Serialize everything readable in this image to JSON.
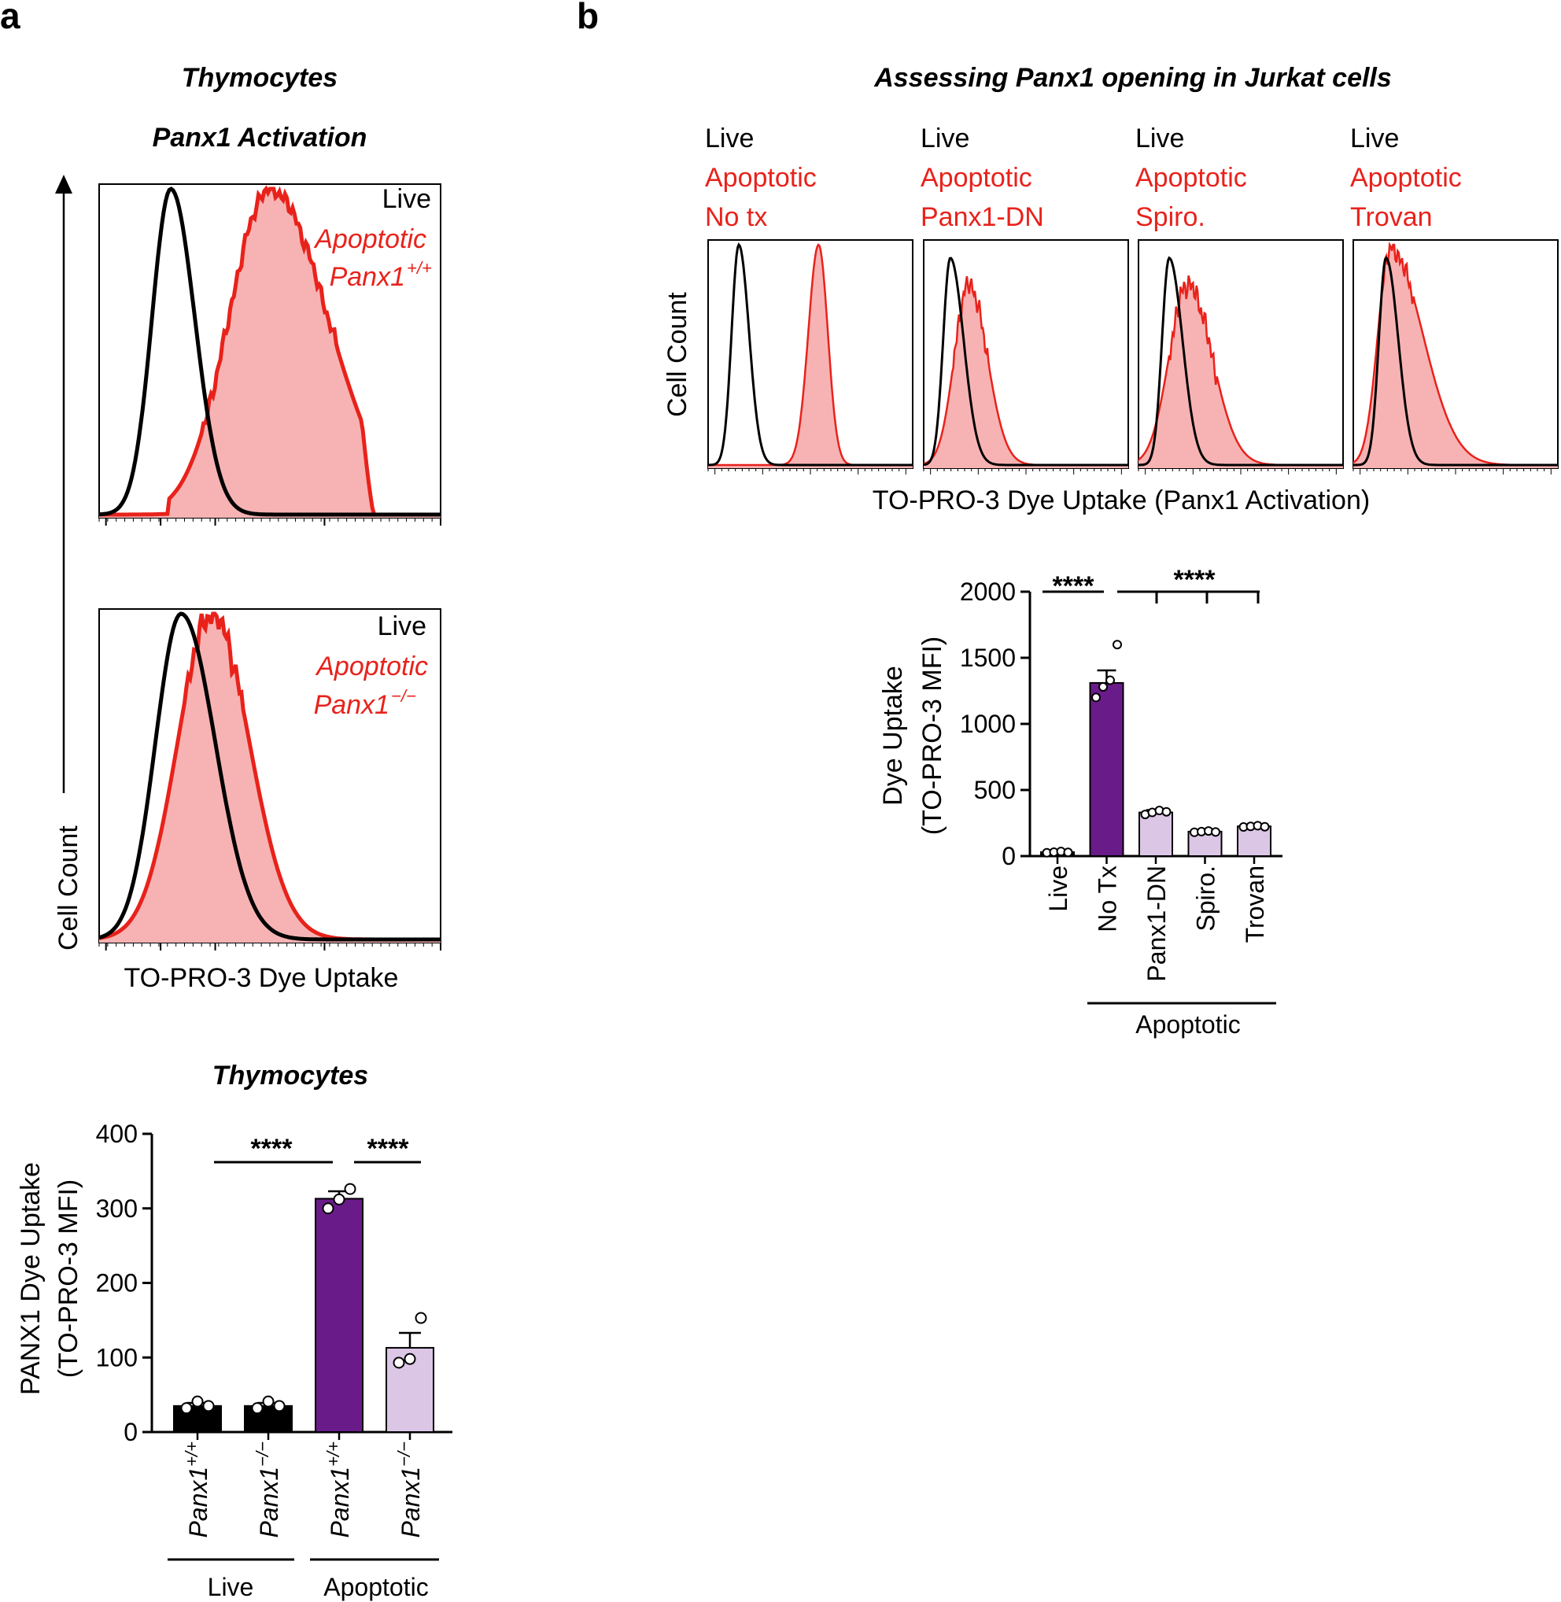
{
  "panels": {
    "a": {
      "letter": "a",
      "title_line1": "Thymocytes",
      "title_line2": "Panx1 Activation",
      "hist1": {
        "live_label": "Live",
        "apoptotic_label": "Apoptotic",
        "genotype_label": "Panx1",
        "genotype_sup": "+/+"
      },
      "hist2": {
        "live_label": "Live",
        "apoptotic_label": "Apoptotic",
        "genotype_label": "Panx1",
        "genotype_sup": "−/−"
      },
      "y_axis_label": "Cell Count",
      "x_axis_label": "TO-PRO-3 Dye Uptake"
    },
    "b": {
      "letter": "b",
      "title": "Assessing Panx1 opening in Jurkat cells",
      "hist_panels": [
        {
          "live_label": "Live",
          "apoptotic_label": "Apoptotic",
          "condition": "No tx"
        },
        {
          "live_label": "Live",
          "apoptotic_label": "Apoptotic",
          "condition": "Panx1-DN"
        },
        {
          "live_label": "Live",
          "apoptotic_label": "Apoptotic",
          "condition": "Spiro."
        },
        {
          "live_label": "Live",
          "apoptotic_label": "Apoptotic",
          "condition": "Trovan"
        }
      ],
      "y_axis_label": "Cell Count",
      "x_axis_label": "TO-PRO-3 Dye Uptake (Panx1 Activation)"
    }
  },
  "colors": {
    "live_line": "#000000",
    "apoptotic_line": "#e8221b",
    "apoptotic_fill": "#f7b3b3",
    "bar_dark": "#000000",
    "bar_purple": "#6a1b8a",
    "bar_lilac": "#dcc6e6"
  },
  "chart_data": [
    {
      "id": "thymocyte-bars",
      "type": "bar",
      "title": "Thymocytes",
      "ylabel_line1": "PANX1 Dye Uptake",
      "ylabel_line2": "(TO-PRO-3 MFI)",
      "ylim": [
        0,
        400
      ],
      "yticks": [
        "0",
        "100",
        "200",
        "300",
        "400"
      ],
      "categories": [
        {
          "label": "Panx1",
          "sup": "+/+",
          "group": "Live"
        },
        {
          "label": "Panx1",
          "sup": "−/−",
          "group": "Live"
        },
        {
          "label": "Panx1",
          "sup": "+/+",
          "group": "Apoptotic"
        },
        {
          "label": "Panx1",
          "sup": "−/−",
          "group": "Apoptotic"
        }
      ],
      "values": [
        35,
        35,
        313,
        113
      ],
      "errors": [
        4,
        4,
        10,
        20
      ],
      "points": [
        [
          32,
          41,
          35
        ],
        [
          32,
          41,
          35
        ],
        [
          300,
          312,
          326
        ],
        [
          93,
          98,
          153
        ]
      ],
      "bar_colors": [
        "#000000",
        "#000000",
        "#6a1b8a",
        "#dcc6e6"
      ],
      "groups": [
        "Live",
        "Apoptotic"
      ],
      "significance": [
        {
          "from": 0,
          "to": 2,
          "label": "****"
        },
        {
          "from": 2,
          "to": 3,
          "label": "****"
        }
      ]
    },
    {
      "id": "jurkat-bars",
      "type": "bar",
      "ylabel_line1": "Dye Uptake",
      "ylabel_line2": "(TO-PRO-3 MFI)",
      "ylim": [
        0,
        2000
      ],
      "yticks": [
        "0",
        "500",
        "1000",
        "1500",
        "2000"
      ],
      "categories": [
        "Live",
        "No Tx",
        "Panx1-DN",
        "Spiro.",
        "Trovan"
      ],
      "values": [
        30,
        1310,
        330,
        185,
        225
      ],
      "errors": [
        5,
        95,
        18,
        8,
        8
      ],
      "points": [
        [
          25,
          30,
          35,
          28
        ],
        [
          1200,
          1280,
          1330,
          1600
        ],
        [
          315,
          330,
          345,
          335
        ],
        [
          180,
          185,
          190,
          182
        ],
        [
          220,
          225,
          230,
          222
        ]
      ],
      "bar_colors": [
        "#000000",
        "#6a1b8a",
        "#dcc6e6",
        "#dcc6e6",
        "#dcc6e6"
      ],
      "group_label": "Apoptotic",
      "significance": [
        {
          "from": 0,
          "to": 1,
          "label": "****"
        },
        {
          "from": 1,
          "to": 4,
          "label": "****"
        }
      ]
    }
  ]
}
